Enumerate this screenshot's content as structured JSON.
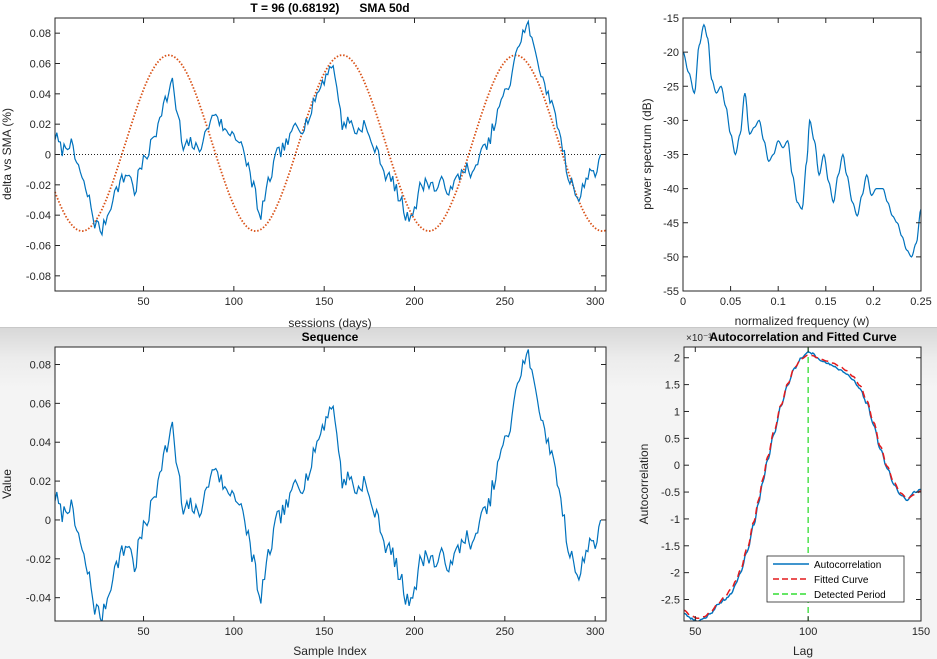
{
  "colors": {
    "series": "#0072bd",
    "fitted_sine": "#d95319",
    "zero_line": "#222222",
    "fitted_curve": "#e31a1c",
    "detected_period": "#33dd33",
    "axis": "#262626"
  },
  "chart_data": [
    {
      "id": "delta",
      "type": "line",
      "title": "T = 96 (0.68192)      SMA 50d",
      "xlabel": "sessions (days)",
      "ylabel": "delta vs SMA (%)",
      "xlim": [
        1,
        306
      ],
      "ylim": [
        -0.09,
        0.09
      ],
      "xticks": [
        50,
        100,
        150,
        200,
        250,
        300
      ],
      "yticks": [
        -0.08,
        -0.06,
        -0.04,
        -0.02,
        0,
        0.02,
        0.04,
        0.06,
        0.08
      ],
      "ytick_labels": [
        "-0.08",
        "-0.06",
        "-0.04",
        "-0.02",
        "0",
        "0.02",
        "0.04",
        "0.06",
        "0.08"
      ],
      "grid": false,
      "knots": [
        [
          1,
          0.012
        ],
        [
          5,
          0.003
        ],
        [
          9,
          0.008
        ],
        [
          13,
          -0.005
        ],
        [
          17,
          -0.02
        ],
        [
          20,
          -0.03
        ],
        [
          23,
          -0.045
        ],
        [
          27,
          -0.05
        ],
        [
          30,
          -0.04
        ],
        [
          34,
          -0.025
        ],
        [
          38,
          -0.017
        ],
        [
          42,
          -0.012
        ],
        [
          45,
          -0.025
        ],
        [
          48,
          -0.01
        ],
        [
          52,
          0
        ],
        [
          56,
          0.012
        ],
        [
          60,
          0.03
        ],
        [
          63,
          0.038
        ],
        [
          66,
          0.047
        ],
        [
          69,
          0.025
        ],
        [
          72,
          0.003
        ],
        [
          76,
          0.008
        ],
        [
          80,
          0.003
        ],
        [
          84,
          0.012
        ],
        [
          87,
          0.022
        ],
        [
          90,
          0.028
        ],
        [
          93,
          0.02
        ],
        [
          96,
          0.014
        ],
        [
          100,
          0.015
        ],
        [
          103,
          0.008
        ],
        [
          107,
          -0.005
        ],
        [
          111,
          -0.02
        ],
        [
          114,
          -0.042
        ],
        [
          117,
          -0.03
        ],
        [
          120,
          -0.015
        ],
        [
          124,
          0
        ],
        [
          128,
          0.005
        ],
        [
          131,
          0.01
        ],
        [
          134,
          0.02
        ],
        [
          138,
          0.018
        ],
        [
          142,
          0.025
        ],
        [
          146,
          0.04
        ],
        [
          150,
          0.05
        ],
        [
          154,
          0.06
        ],
        [
          157,
          0.045
        ],
        [
          160,
          0.02
        ],
        [
          164,
          0.022
        ],
        [
          168,
          0.015
        ],
        [
          172,
          0.02
        ],
        [
          176,
          0.008
        ],
        [
          180,
          0
        ],
        [
          184,
          -0.013
        ],
        [
          188,
          -0.018
        ],
        [
          192,
          -0.03
        ],
        [
          196,
          -0.042
        ],
        [
          200,
          -0.035
        ],
        [
          204,
          -0.02
        ],
        [
          208,
          -0.018
        ],
        [
          212,
          -0.023
        ],
        [
          216,
          -0.018
        ],
        [
          220,
          -0.025
        ],
        [
          224,
          -0.015
        ],
        [
          228,
          -0.008
        ],
        [
          232,
          -0.015
        ],
        [
          236,
          0
        ],
        [
          240,
          0.005
        ],
        [
          244,
          0.018
        ],
        [
          248,
          0.035
        ],
        [
          252,
          0.045
        ],
        [
          256,
          0.065
        ],
        [
          260,
          0.08
        ],
        [
          263,
          0.085
        ],
        [
          266,
          0.07
        ],
        [
          270,
          0.055
        ],
        [
          274,
          0.04
        ],
        [
          278,
          0.025
        ],
        [
          282,
          0.005
        ],
        [
          285,
          -0.015
        ],
        [
          288,
          -0.02
        ],
        [
          291,
          -0.03
        ],
        [
          294,
          -0.02
        ],
        [
          297,
          -0.01
        ],
        [
          300,
          -0.012
        ],
        [
          303,
          0
        ]
      ],
      "fitted_sine": {
        "period": 96,
        "amplitude": 0.058,
        "offset": 0.0075,
        "peak_at": 64
      },
      "zero_line": 0
    },
    {
      "id": "spectrum",
      "type": "line",
      "title": "",
      "xlabel": "normalized frequency (w)",
      "ylabel": "power spectrum (dB)",
      "xlim": [
        0,
        0.25
      ],
      "ylim": [
        -55,
        -15
      ],
      "xticks": [
        0,
        0.05,
        0.1,
        0.15,
        0.2,
        0.25
      ],
      "xtick_labels": [
        "0",
        "0.05",
        "0.1",
        "0.15",
        "0.2",
        "0.25"
      ],
      "yticks": [
        -55,
        -50,
        -45,
        -40,
        -35,
        -30,
        -25,
        -20,
        -15
      ],
      "ytick_labels": [
        "-55",
        "-50",
        "-45",
        "-40",
        "-35",
        "-30",
        "-25",
        "-20",
        "-15"
      ],
      "grid": false,
      "knots": [
        [
          0,
          -20
        ],
        [
          0.006,
          -23
        ],
        [
          0.012,
          -26
        ],
        [
          0.017,
          -19
        ],
        [
          0.022,
          -16
        ],
        [
          0.026,
          -18
        ],
        [
          0.03,
          -24
        ],
        [
          0.035,
          -26
        ],
        [
          0.04,
          -25
        ],
        [
          0.045,
          -28
        ],
        [
          0.05,
          -32
        ],
        [
          0.055,
          -35
        ],
        [
          0.06,
          -32
        ],
        [
          0.065,
          -26
        ],
        [
          0.07,
          -32
        ],
        [
          0.075,
          -31
        ],
        [
          0.08,
          -30
        ],
        [
          0.085,
          -33
        ],
        [
          0.09,
          -36
        ],
        [
          0.095,
          -35
        ],
        [
          0.1,
          -33
        ],
        [
          0.105,
          -34
        ],
        [
          0.11,
          -33
        ],
        [
          0.115,
          -38
        ],
        [
          0.12,
          -42
        ],
        [
          0.125,
          -43
        ],
        [
          0.13,
          -36
        ],
        [
          0.133,
          -30
        ],
        [
          0.138,
          -33
        ],
        [
          0.143,
          -38
        ],
        [
          0.148,
          -35
        ],
        [
          0.153,
          -39
        ],
        [
          0.158,
          -42
        ],
        [
          0.163,
          -38
        ],
        [
          0.168,
          -35
        ],
        [
          0.172,
          -38
        ],
        [
          0.178,
          -42
        ],
        [
          0.183,
          -44
        ],
        [
          0.188,
          -41
        ],
        [
          0.193,
          -38
        ],
        [
          0.198,
          -41
        ],
        [
          0.203,
          -40
        ],
        [
          0.21,
          -40
        ],
        [
          0.215,
          -42
        ],
        [
          0.22,
          -44
        ],
        [
          0.225,
          -45
        ],
        [
          0.23,
          -47
        ],
        [
          0.235,
          -49
        ],
        [
          0.24,
          -50
        ],
        [
          0.245,
          -48
        ],
        [
          0.25,
          -43
        ]
      ]
    },
    {
      "id": "sequence",
      "type": "line",
      "title": "Sequence",
      "xlabel": "Sample Index",
      "ylabel": "Value",
      "xlim": [
        1,
        306
      ],
      "ylim": [
        -0.052,
        0.089
      ],
      "xticks": [
        50,
        100,
        150,
        200,
        250,
        300
      ],
      "yticks": [
        -0.04,
        -0.02,
        0,
        0.02,
        0.04,
        0.06,
        0.08
      ],
      "ytick_labels": [
        "-0.04",
        "-0.02",
        "0",
        "0.02",
        "0.04",
        "0.06",
        "0.08"
      ],
      "grid": false,
      "same_series_as": "delta"
    },
    {
      "id": "autocorr",
      "type": "line",
      "title": "Autocorrelation and Fitted Curve",
      "xlabel": "Lag",
      "ylabel": "Autocorrelation",
      "xlim": [
        45,
        150
      ],
      "ylim": [
        -2.9,
        2.2
      ],
      "xticks": [
        50,
        100,
        150
      ],
      "yticks": [
        -2.5,
        -2,
        -1.5,
        -1,
        -0.5,
        0,
        0.5,
        1,
        1.5,
        2
      ],
      "ytick_labels": [
        "-2.5",
        "-2",
        "-1.5",
        "-1",
        "-0.5",
        "0",
        "0.5",
        "1",
        "1.5",
        "2"
      ],
      "y_exponent_label": "×10⁻³",
      "grid": false,
      "legend_position": "bottom-right",
      "series": [
        {
          "name": "Autocorrelation",
          "style": "solid",
          "knots": [
            [
              45,
              -2.75
            ],
            [
              48,
              -2.85
            ],
            [
              51,
              -2.9
            ],
            [
              54,
              -2.85
            ],
            [
              57,
              -2.75
            ],
            [
              60,
              -2.6
            ],
            [
              63,
              -2.5
            ],
            [
              66,
              -2.4
            ],
            [
              68,
              -2.2
            ],
            [
              70,
              -2.0
            ],
            [
              73,
              -1.6
            ],
            [
              76,
              -1.1
            ],
            [
              78,
              -0.7
            ],
            [
              80,
              -0.3
            ],
            [
              82,
              0.1
            ],
            [
              85,
              0.6
            ],
            [
              88,
              1.1
            ],
            [
              91,
              1.5
            ],
            [
              94,
              1.8
            ],
            [
              97,
              2.0
            ],
            [
              100,
              2.1
            ],
            [
              102,
              2.08
            ],
            [
              104,
              2.0
            ],
            [
              106,
              1.95
            ],
            [
              108,
              1.9
            ],
            [
              111,
              1.85
            ],
            [
              114,
              1.78
            ],
            [
              117,
              1.7
            ],
            [
              120,
              1.58
            ],
            [
              123,
              1.42
            ],
            [
              126,
              1.15
            ],
            [
              129,
              0.75
            ],
            [
              132,
              0.3
            ],
            [
              135,
              -0.05
            ],
            [
              138,
              -0.35
            ],
            [
              141,
              -0.55
            ],
            [
              144,
              -0.65
            ],
            [
              147,
              -0.5
            ],
            [
              150,
              -0.45
            ]
          ]
        },
        {
          "name": "Fitted Curve",
          "style": "dashed",
          "knots": [
            [
              45,
              -2.7
            ],
            [
              48,
              -2.8
            ],
            [
              51,
              -2.85
            ],
            [
              54,
              -2.82
            ],
            [
              57,
              -2.72
            ],
            [
              60,
              -2.58
            ],
            [
              63,
              -2.45
            ],
            [
              66,
              -2.3
            ],
            [
              68,
              -2.15
            ],
            [
              70,
              -1.95
            ],
            [
              73,
              -1.55
            ],
            [
              76,
              -1.05
            ],
            [
              78,
              -0.65
            ],
            [
              80,
              -0.25
            ],
            [
              82,
              0.15
            ],
            [
              85,
              0.65
            ],
            [
              88,
              1.12
            ],
            [
              91,
              1.52
            ],
            [
              94,
              1.82
            ],
            [
              97,
              1.98
            ],
            [
              100,
              2.05
            ],
            [
              102,
              2.04
            ],
            [
              104,
              2.0
            ],
            [
              106,
              1.97
            ],
            [
              108,
              1.94
            ],
            [
              111,
              1.9
            ],
            [
              114,
              1.84
            ],
            [
              117,
              1.76
            ],
            [
              120,
              1.65
            ],
            [
              123,
              1.48
            ],
            [
              126,
              1.2
            ],
            [
              129,
              0.8
            ],
            [
              132,
              0.35
            ],
            [
              135,
              -0.02
            ],
            [
              138,
              -0.32
            ],
            [
              141,
              -0.52
            ],
            [
              144,
              -0.62
            ],
            [
              147,
              -0.55
            ],
            [
              150,
              -0.48
            ]
          ]
        },
        {
          "name": "Detected Period",
          "style": "dashed-vertical",
          "x": 100
        }
      ]
    }
  ]
}
